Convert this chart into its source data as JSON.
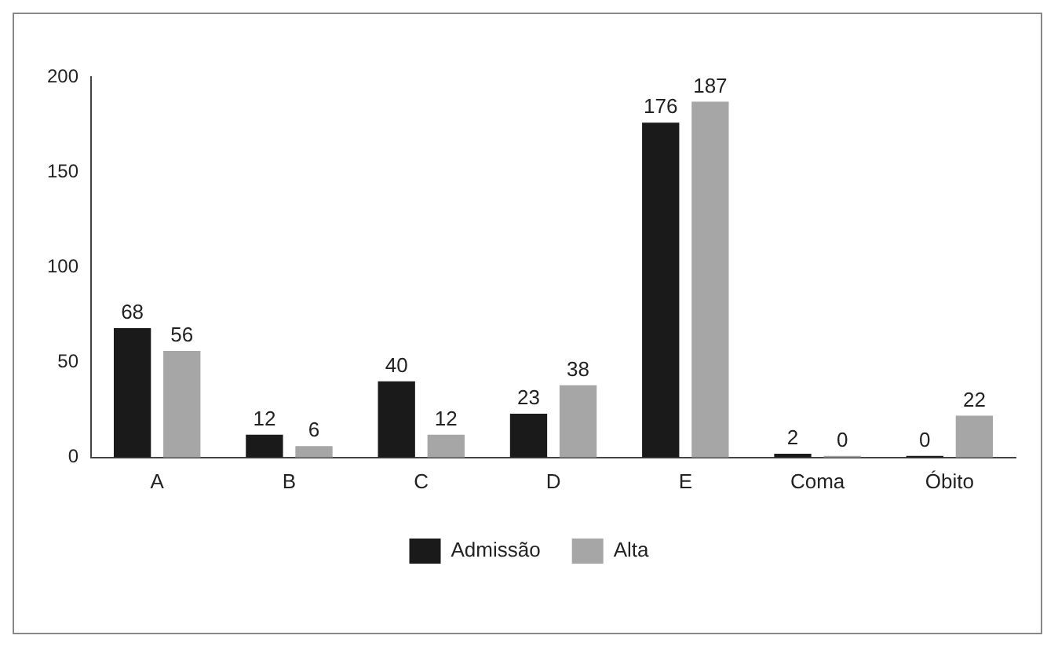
{
  "chart_data": {
    "type": "bar",
    "categories": [
      "A",
      "B",
      "C",
      "D",
      "E",
      "Coma",
      "Óbito"
    ],
    "series": [
      {
        "name": "Admissão",
        "color": "#1a1a1a",
        "values": [
          68,
          12,
          40,
          23,
          176,
          2,
          0
        ]
      },
      {
        "name": "Alta",
        "color": "#a6a6a6",
        "values": [
          56,
          6,
          12,
          38,
          187,
          0,
          22
        ]
      }
    ],
    "ylim": [
      0,
      200
    ],
    "yticks": [
      0,
      50,
      100,
      150,
      200
    ],
    "grid": false,
    "legend": "bottom",
    "data_labels": true
  }
}
